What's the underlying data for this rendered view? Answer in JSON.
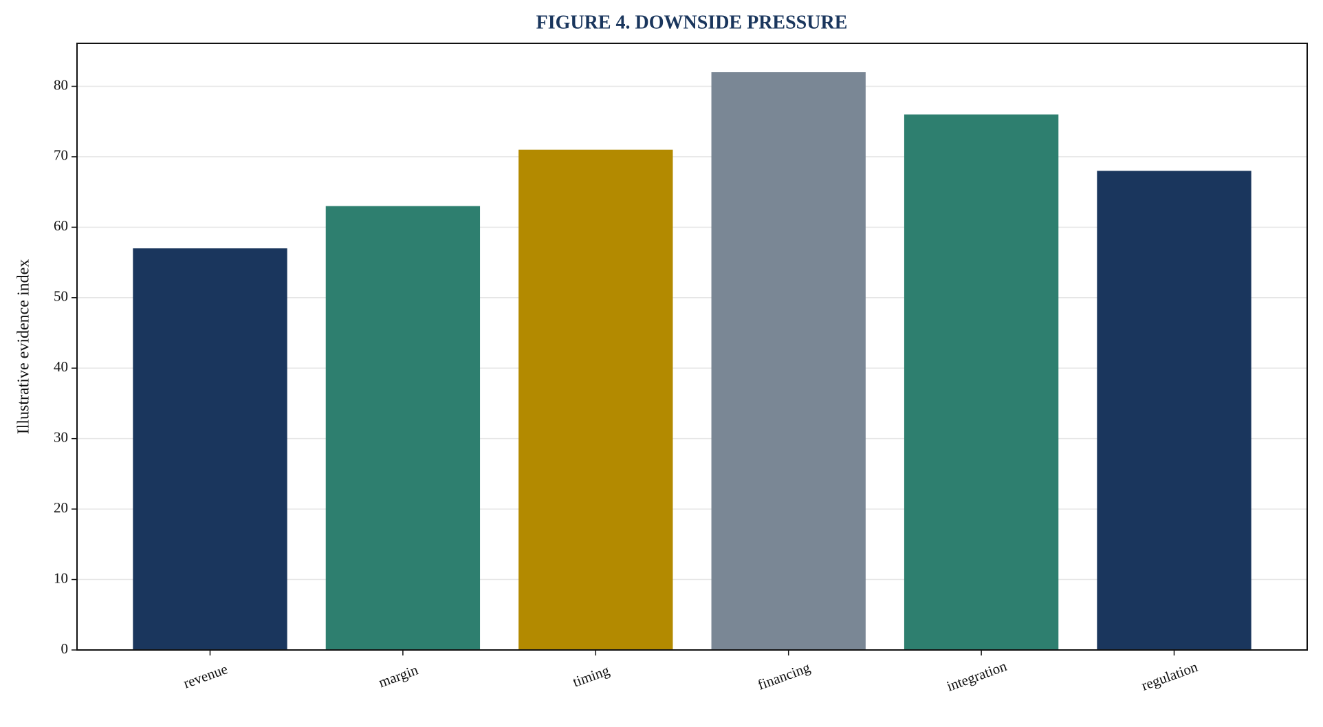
{
  "chart_data": {
    "type": "bar",
    "title": "FIGURE 4. DOWNSIDE PRESSURE",
    "y_label": "Illustrative evidence index",
    "categories": [
      "revenue",
      "margin",
      "timing",
      "financing",
      "integration",
      "regulation"
    ],
    "values": [
      57,
      63,
      71,
      82,
      76,
      68
    ],
    "colors": [
      "#1a365d",
      "#2e7f6f",
      "#b38a00",
      "#7a8795",
      "#2e7f6f",
      "#1a365d"
    ],
    "ylim": [
      0,
      86.1
    ],
    "yticks": [
      0,
      10,
      20,
      30,
      40,
      50,
      60,
      70,
      80
    ],
    "grid": true
  }
}
